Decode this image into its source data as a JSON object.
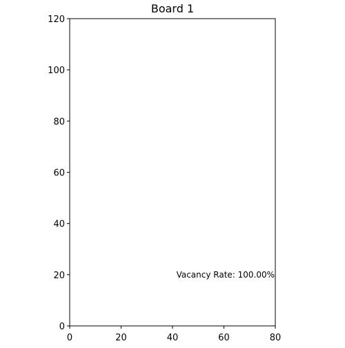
{
  "chart_data": {
    "type": "scatter",
    "title": "Board 1",
    "xlabel": "",
    "ylabel": "",
    "xlim": [
      0,
      80
    ],
    "ylim": [
      0,
      120
    ],
    "x_ticks": [
      0,
      20,
      40,
      60,
      80
    ],
    "y_ticks": [
      0,
      20,
      40,
      60,
      80,
      100,
      120
    ],
    "grid": false,
    "series": [],
    "annotations": [
      {
        "text": "Vacancy Rate: 100.00%",
        "x": 41.5,
        "y": 20
      }
    ]
  }
}
